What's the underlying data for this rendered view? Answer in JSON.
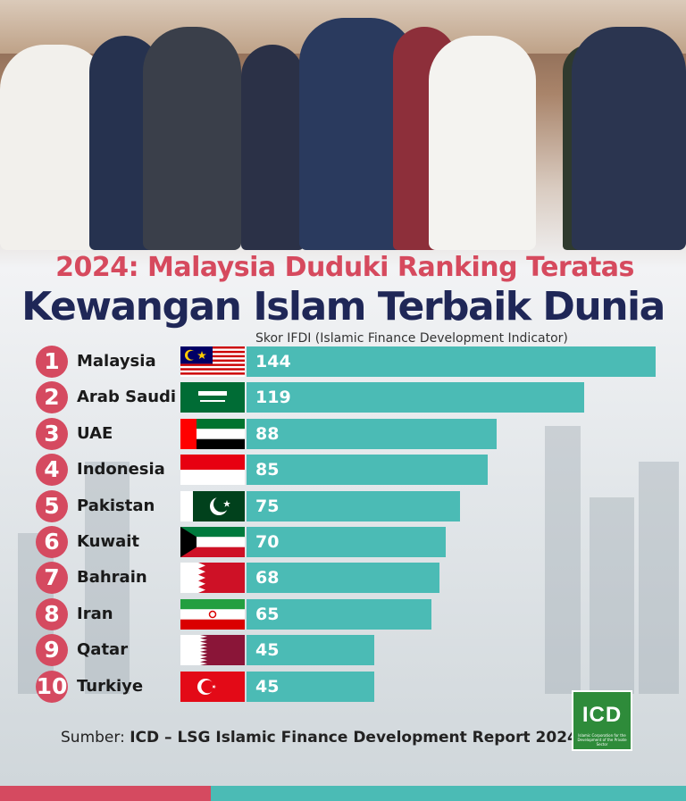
{
  "headline": {
    "line1": "2024: Malaysia Duduki Ranking Teratas",
    "line2": "Kewangan Islam Terbaik Dunia"
  },
  "colors": {
    "accent_red": "#d54a60",
    "bar_teal": "#4bbbb5",
    "headline_navy": "#1f2757"
  },
  "chart_data": {
    "type": "bar",
    "orientation": "horizontal",
    "value_label": "Skor IFDI (Islamic Finance Development Indicator)",
    "categories": [
      "Malaysia",
      "Arab Saudi",
      "UAE",
      "Indonesia",
      "Pakistan",
      "Kuwait",
      "Bahrain",
      "Iran",
      "Qatar",
      "Turkiye"
    ],
    "ranks": [
      "1",
      "2",
      "3",
      "4",
      "5",
      "6",
      "7",
      "8",
      "9",
      "10"
    ],
    "values": [
      144,
      119,
      88,
      85,
      75,
      70,
      68,
      65,
      45,
      45
    ],
    "xlim": [
      0,
      144
    ]
  },
  "footer": {
    "source_prefix": "Sumber: ",
    "source_text": "ICD – LSG Islamic Finance Development Report 2024",
    "logo_text": "ICD",
    "logo_subtext": "Islamic Corporation for the Development of the Private Sector"
  }
}
